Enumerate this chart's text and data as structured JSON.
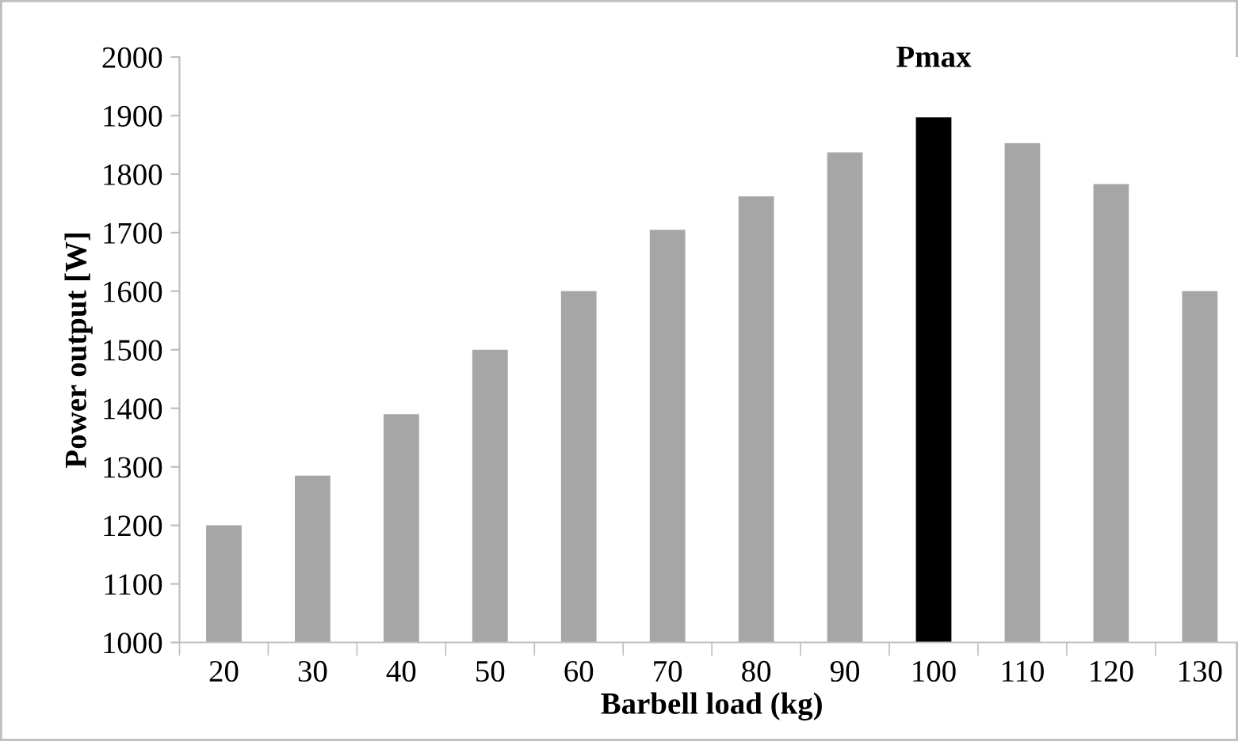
{
  "chart_data": {
    "type": "bar",
    "xlabel": "Barbell load (kg)",
    "ylabel": "Power output [W]",
    "categories": [
      "20",
      "30",
      "40",
      "50",
      "60",
      "70",
      "80",
      "90",
      "100",
      "110",
      "120",
      "130"
    ],
    "values": [
      1200,
      1285,
      1390,
      1500,
      1600,
      1705,
      1762,
      1837,
      1897,
      1853,
      1783,
      1600
    ],
    "colors": [
      "#a6a6a6",
      "#a6a6a6",
      "#a6a6a6",
      "#a6a6a6",
      "#a6a6a6",
      "#a6a6a6",
      "#a6a6a6",
      "#a6a6a6",
      "#000000",
      "#a6a6a6",
      "#a6a6a6",
      "#a6a6a6"
    ],
    "annotations": [
      {
        "text": "Pmax",
        "x": "100",
        "y": 1897
      }
    ],
    "ylim": [
      1000,
      2000
    ],
    "yticks": [
      1000,
      1100,
      1200,
      1300,
      1400,
      1500,
      1600,
      1700,
      1800,
      1900,
      2000
    ],
    "grid": false,
    "legend": false
  }
}
